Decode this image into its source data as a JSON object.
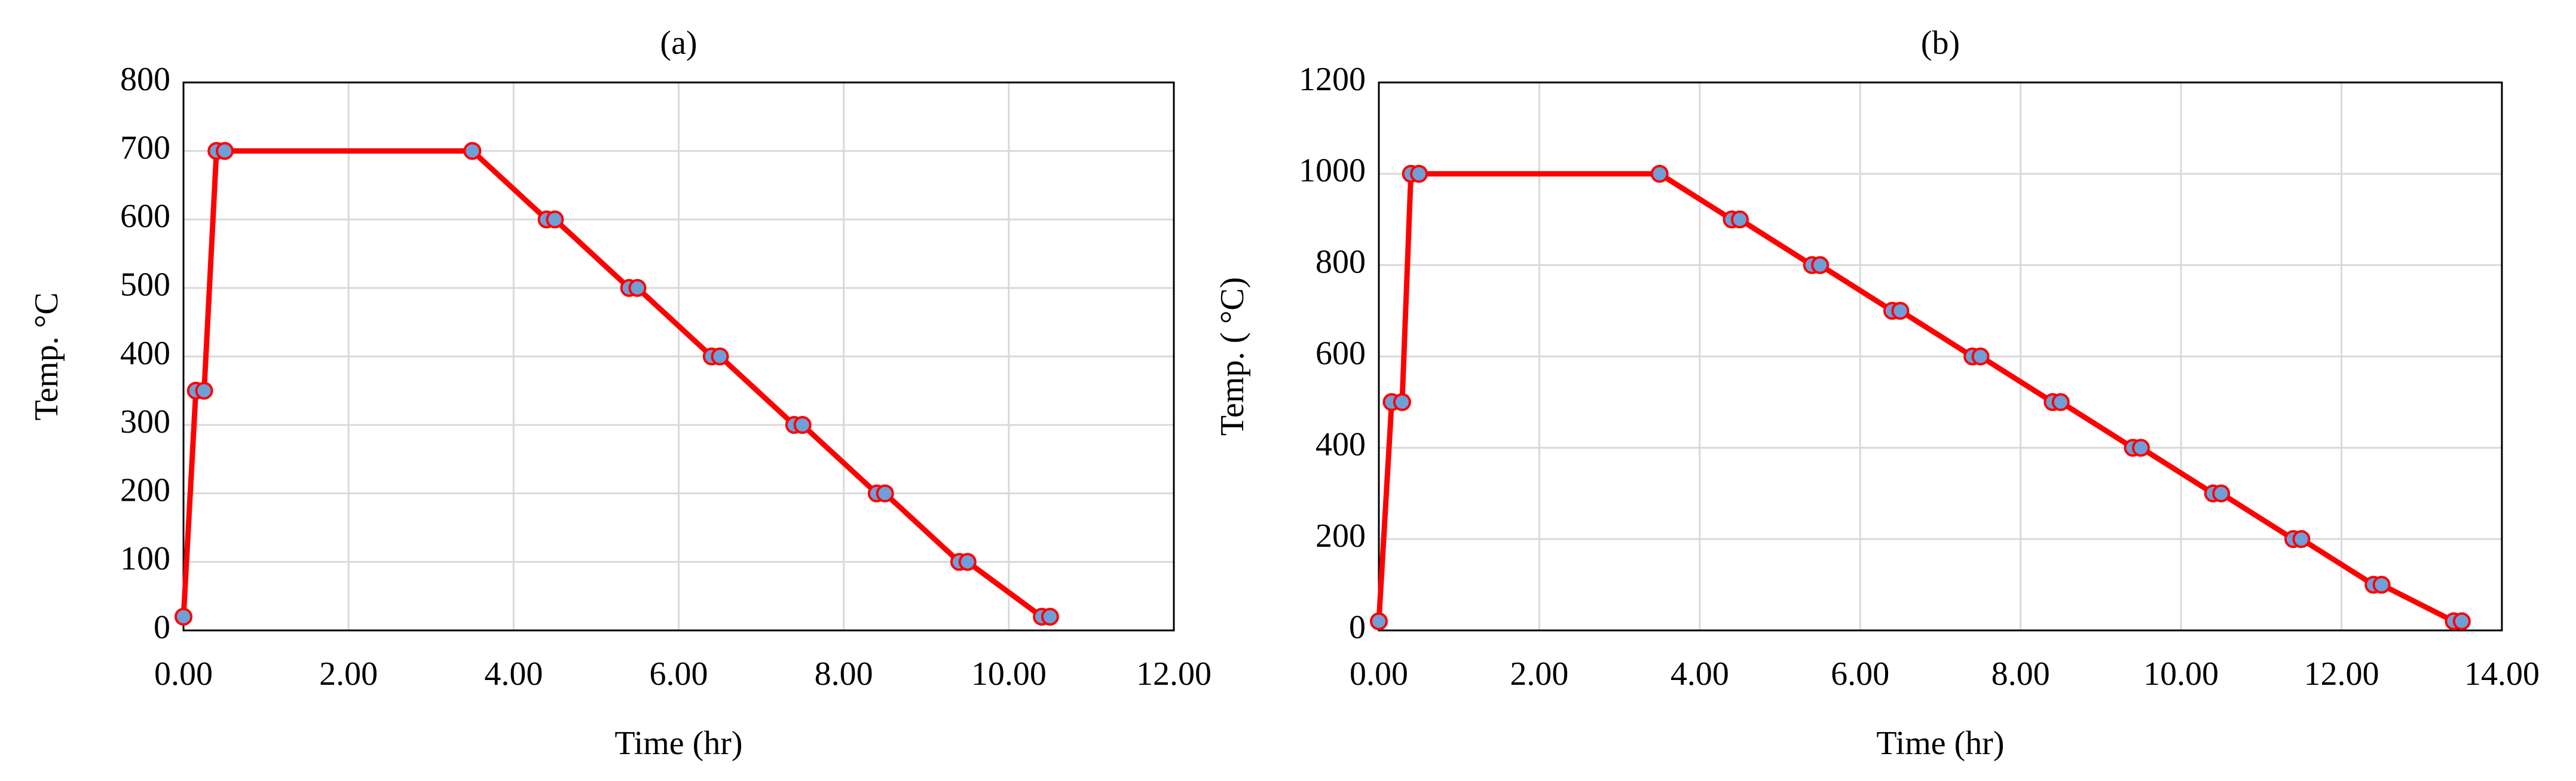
{
  "chart_data": [
    {
      "type": "line",
      "title": "(a)",
      "x_label": "Time (hr)",
      "y_label": "Temp. °C",
      "x": [
        0,
        0.15,
        0.25,
        0.4,
        0.5,
        3.5,
        4.4,
        4.5,
        5.4,
        5.5,
        6.4,
        6.5,
        7.4,
        7.5,
        8.4,
        8.5,
        9.4,
        9.5,
        10.4,
        10.5
      ],
      "values": [
        20,
        350,
        350,
        700,
        700,
        700,
        600,
        600,
        500,
        500,
        400,
        400,
        300,
        300,
        200,
        200,
        100,
        100,
        20,
        20
      ],
      "color": "#ff0000",
      "marker_color": "#6f9fd8",
      "xlim": [
        0,
        12
      ],
      "xticks": [
        {
          "value": 0,
          "label": "0.00"
        },
        {
          "value": 2,
          "label": "2.00"
        },
        {
          "value": 4,
          "label": "4.00"
        },
        {
          "value": 6,
          "label": "6.00"
        },
        {
          "value": 8,
          "label": "8.00"
        },
        {
          "value": 10,
          "label": "10.00"
        },
        {
          "value": 12,
          "label": "12.00"
        }
      ],
      "ylim": [
        0,
        800
      ],
      "yticks": [
        0,
        100,
        200,
        300,
        400,
        500,
        600,
        700,
        800
      ],
      "grid": true
    },
    {
      "type": "line",
      "title": "(b)",
      "x_label": "Time (hr)",
      "y_label": "Temp. ( °C)",
      "x": [
        0,
        0.16,
        0.29,
        0.4,
        0.5,
        3.5,
        4.4,
        4.5,
        5.4,
        5.5,
        6.4,
        6.5,
        7.4,
        7.5,
        8.4,
        8.5,
        9.4,
        9.5,
        10.4,
        10.5,
        11.4,
        11.5,
        12.4,
        12.5,
        13.4,
        13.5
      ],
      "values": [
        20,
        500,
        500,
        1000,
        1000,
        1000,
        900,
        900,
        800,
        800,
        700,
        700,
        600,
        600,
        500,
        500,
        400,
        400,
        300,
        300,
        200,
        200,
        100,
        100,
        20,
        20
      ],
      "color": "#ff0000",
      "marker_color": "#6f9fd8",
      "xlim": [
        0,
        14
      ],
      "xticks": [
        {
          "value": 0,
          "label": "0.00"
        },
        {
          "value": 2,
          "label": "2.00"
        },
        {
          "value": 4,
          "label": "4.00"
        },
        {
          "value": 6,
          "label": "6.00"
        },
        {
          "value": 8,
          "label": "8.00"
        },
        {
          "value": 10,
          "label": "10.00"
        },
        {
          "value": 12,
          "label": "12.00"
        },
        {
          "value": 14,
          "label": "14.00"
        }
      ],
      "ylim": [
        0,
        1200
      ],
      "yticks": [
        0,
        200,
        400,
        600,
        800,
        1000,
        1200
      ],
      "grid": true
    }
  ]
}
